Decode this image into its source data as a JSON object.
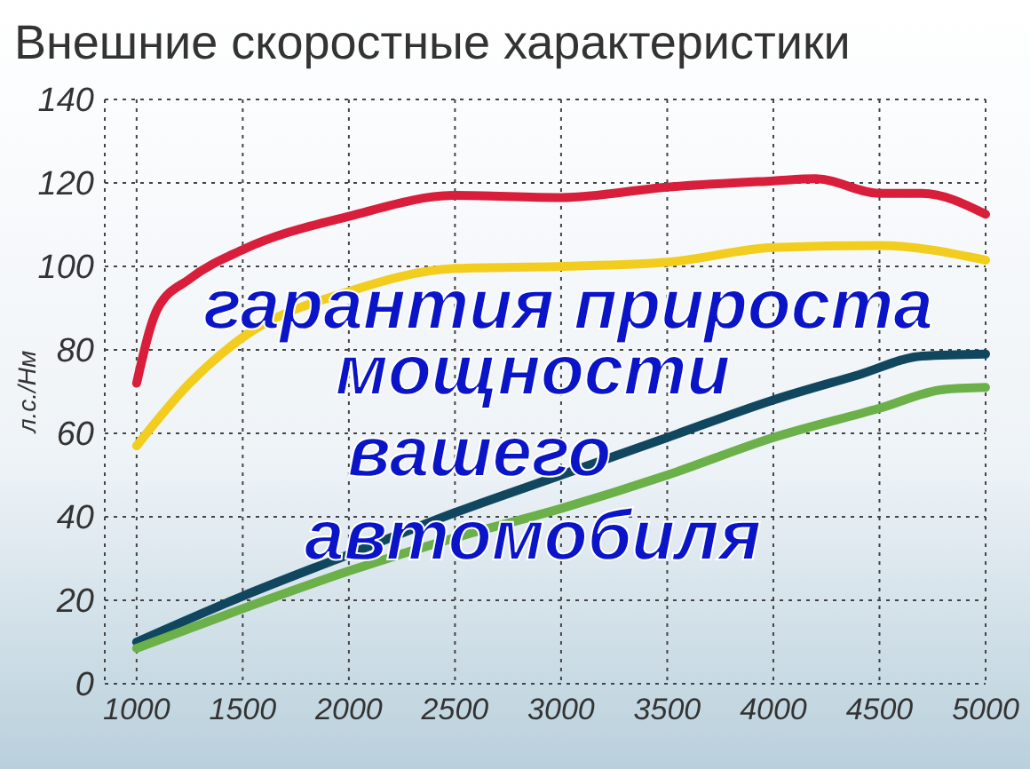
{
  "chart_data": {
    "type": "line",
    "title": "Внешние скоростные характеристики",
    "ylabel": "л.с./Нм",
    "xlim": [
      850,
      5000
    ],
    "xticks": [
      1000,
      1500,
      2000,
      2500,
      3000,
      3500,
      4000,
      4500,
      5000
    ],
    "ylim": [
      0,
      140
    ],
    "yticks": [
      0,
      20,
      40,
      60,
      80,
      100,
      120,
      140
    ],
    "grid": true,
    "line_style": "solid",
    "marker": "none",
    "series": [
      {
        "color": "#d81e3a",
        "x": [
          1000,
          1100,
          1250,
          1500,
          2000,
          2500,
          3000,
          3500,
          4000,
          4200,
          4500,
          4700,
          5000
        ],
        "values": [
          72,
          90,
          97,
          104,
          112,
          117,
          116.5,
          119,
          120.5,
          121,
          117.5,
          117.5,
          112.5
        ]
      },
      {
        "color": "#f2cd1e",
        "x": [
          1000,
          1250,
          1500,
          2000,
          2500,
          3000,
          3500,
          4000,
          4500,
          5000
        ],
        "values": [
          57,
          72,
          83,
          94,
          99.5,
          100,
          101,
          104.5,
          105,
          101.5
        ]
      },
      {
        "color": "#10475f",
        "x": [
          1000,
          1500,
          2000,
          2500,
          3000,
          3500,
          4000,
          4400,
          4700,
          5000
        ],
        "values": [
          10,
          21,
          31,
          41,
          50,
          59,
          68,
          74,
          78.5,
          79
        ]
      },
      {
        "color": "#6cb04a",
        "x": [
          1000,
          1500,
          2000,
          2500,
          3000,
          3500,
          4000,
          4500,
          4800,
          5000
        ],
        "values": [
          8.5,
          18,
          27,
          35,
          42,
          50,
          59,
          66,
          70.5,
          71
        ]
      }
    ],
    "annotations": [
      "гарантия прироста",
      "мощности",
      "вашего",
      "автомобиля"
    ]
  }
}
